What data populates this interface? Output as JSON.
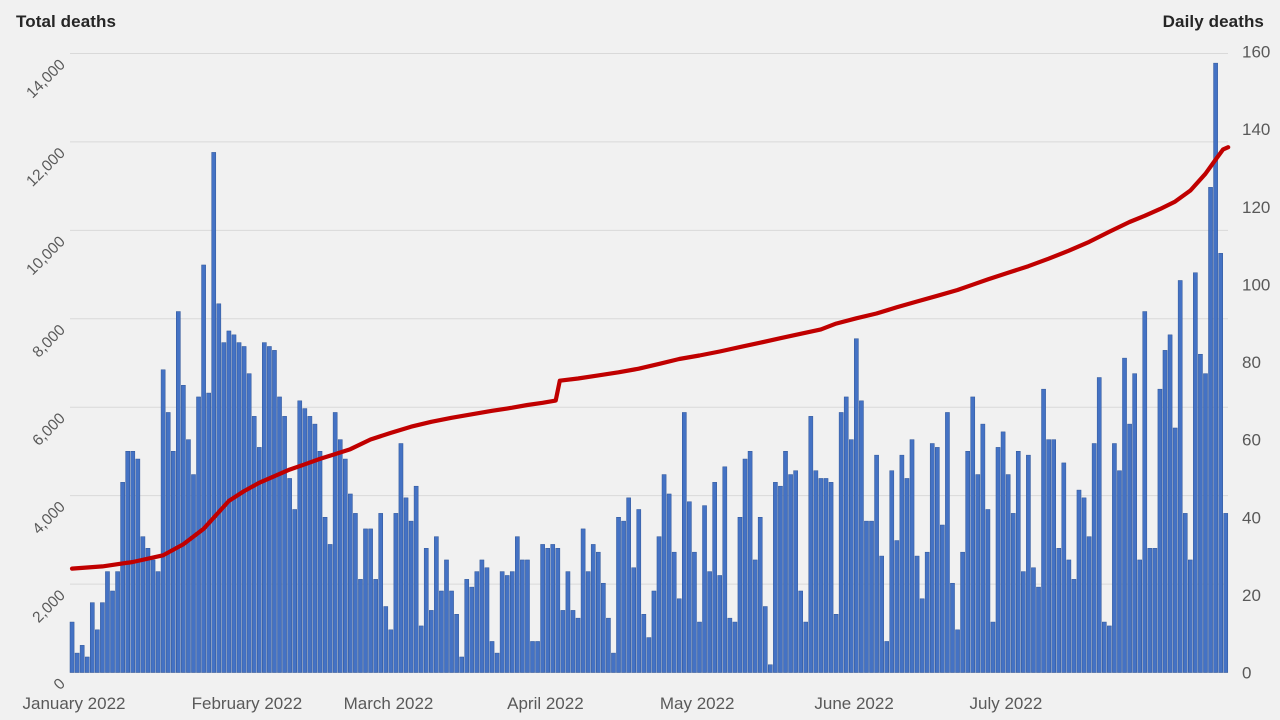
{
  "page": {
    "background": "#f1f1f1"
  },
  "chart_data": {
    "type": "combo",
    "title": "",
    "left_axis": {
      "title": "Total deaths",
      "min": 0,
      "max": 14000,
      "step": 2000,
      "tick_labels": [
        "0",
        "2,000",
        "4,000",
        "6,000",
        "8,000",
        "10,000",
        "12,000",
        "14,000"
      ]
    },
    "right_axis": {
      "title": "Daily deaths",
      "min": 0,
      "max": 160,
      "step": 20,
      "tick_labels": [
        "0",
        "20",
        "40",
        "60",
        "80",
        "100",
        "120",
        "140",
        "160"
      ]
    },
    "x_axis": {
      "month_labels": [
        "January 2022",
        "February 2022",
        "March 2022",
        "April 2022",
        "May 2022",
        "June 2022",
        "July 2022"
      ],
      "month_start_days": [
        0,
        31,
        59,
        90,
        120,
        151,
        181
      ],
      "days_total": 229
    },
    "grid": {
      "show": true,
      "color": "#d9d9d9"
    },
    "legend": {
      "show": false
    },
    "text_color": "#595959",
    "title_color": "#262626",
    "series": [
      {
        "name": "Daily deaths",
        "type": "bar",
        "axis": "right",
        "color": "#4472c4",
        "border_color": "#2f5597",
        "values": [
          13,
          5,
          7,
          4,
          18,
          11,
          18,
          26,
          21,
          26,
          49,
          57,
          57,
          55,
          35,
          32,
          29,
          26,
          78,
          67,
          57,
          93,
          74,
          60,
          51,
          71,
          105,
          72,
          134,
          95,
          85,
          88,
          87,
          85,
          84,
          77,
          66,
          58,
          85,
          84,
          83,
          71,
          66,
          50,
          42,
          70,
          68,
          66,
          64,
          57,
          40,
          33,
          67,
          60,
          55,
          46,
          41,
          24,
          37,
          37,
          24,
          41,
          17,
          11,
          41,
          59,
          45,
          39,
          48,
          12,
          32,
          16,
          35,
          21,
          29,
          21,
          15,
          4,
          24,
          22,
          26,
          29,
          27,
          8,
          5,
          26,
          25,
          26,
          35,
          29,
          29,
          8,
          8,
          33,
          32,
          33,
          32,
          16,
          26,
          16,
          14,
          37,
          26,
          33,
          31,
          23,
          14,
          5,
          40,
          39,
          45,
          27,
          42,
          15,
          9,
          21,
          35,
          51,
          46,
          31,
          19,
          67,
          44,
          31,
          13,
          43,
          26,
          49,
          25,
          53,
          14,
          13,
          40,
          55,
          57,
          29,
          40,
          17,
          2,
          49,
          48,
          57,
          51,
          52,
          21,
          13,
          66,
          52,
          50,
          50,
          49,
          15,
          67,
          71,
          60,
          86,
          70,
          39,
          39,
          56,
          30,
          8,
          52,
          34,
          56,
          50,
          60,
          30,
          19,
          31,
          59,
          58,
          38,
          67,
          23,
          11,
          31,
          57,
          71,
          51,
          64,
          42,
          13,
          58,
          62,
          51,
          41,
          57,
          26,
          56,
          27,
          22,
          73,
          60,
          60,
          32,
          54,
          29,
          24,
          47,
          45,
          35,
          59,
          76,
          13,
          12,
          59,
          52,
          81,
          64,
          77,
          29,
          93,
          32,
          32,
          73,
          83,
          87,
          63,
          101,
          41,
          29,
          103,
          82,
          77,
          125,
          157,
          108,
          41
        ]
      },
      {
        "name": "Total deaths",
        "type": "line",
        "axis": "left",
        "color": "#c00000",
        "anchors": [
          [
            0,
            2350
          ],
          [
            6,
            2400
          ],
          [
            12,
            2500
          ],
          [
            18,
            2650
          ],
          [
            22,
            2900
          ],
          [
            26,
            3250
          ],
          [
            31,
            3880
          ],
          [
            34,
            4100
          ],
          [
            37,
            4290
          ],
          [
            40,
            4440
          ],
          [
            43,
            4590
          ],
          [
            46,
            4710
          ],
          [
            49,
            4830
          ],
          [
            52,
            4940
          ],
          [
            55,
            5050
          ],
          [
            59,
            5270
          ],
          [
            63,
            5420
          ],
          [
            67,
            5560
          ],
          [
            71,
            5670
          ],
          [
            75,
            5760
          ],
          [
            79,
            5840
          ],
          [
            83,
            5920
          ],
          [
            87,
            5990
          ],
          [
            90,
            6050
          ],
          [
            93,
            6100
          ],
          [
            95.6,
            6150
          ],
          [
            96.4,
            6600
          ],
          [
            100,
            6650
          ],
          [
            104,
            6720
          ],
          [
            108,
            6790
          ],
          [
            112,
            6870
          ],
          [
            116,
            6980
          ],
          [
            120,
            7090
          ],
          [
            124,
            7170
          ],
          [
            128,
            7260
          ],
          [
            132,
            7360
          ],
          [
            136,
            7460
          ],
          [
            140,
            7560
          ],
          [
            144,
            7660
          ],
          [
            148,
            7760
          ],
          [
            151,
            7890
          ],
          [
            155,
            8010
          ],
          [
            159,
            8120
          ],
          [
            163,
            8260
          ],
          [
            167,
            8390
          ],
          [
            171,
            8520
          ],
          [
            175,
            8650
          ],
          [
            178,
            8770
          ],
          [
            181,
            8890
          ],
          [
            185,
            9040
          ],
          [
            189,
            9190
          ],
          [
            193,
            9360
          ],
          [
            197,
            9540
          ],
          [
            201,
            9740
          ],
          [
            205,
            9970
          ],
          [
            209,
            10190
          ],
          [
            212,
            10330
          ],
          [
            215,
            10480
          ],
          [
            218,
            10650
          ],
          [
            221,
            10900
          ],
          [
            224,
            11280
          ],
          [
            226,
            11600
          ],
          [
            227.5,
            11830
          ],
          [
            228.5,
            11880
          ]
        ]
      }
    ]
  }
}
